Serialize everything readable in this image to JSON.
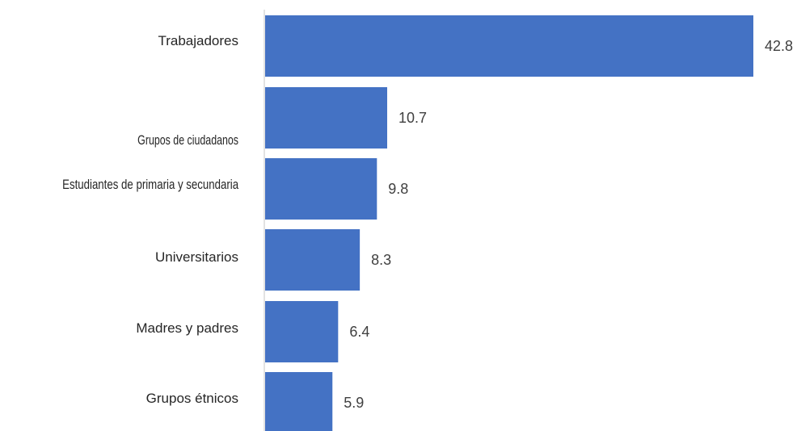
{
  "chart_data": {
    "type": "bar",
    "orientation": "horizontal",
    "categories": [
      "Trabajadores",
      "Grupos de ciudadanos",
      "Estudiantes de primaria y secundaria",
      "Universitarios",
      "Madres y padres",
      "Grupos étnicos"
    ],
    "values": [
      42.8,
      10.7,
      9.8,
      8.3,
      6.4,
      5.9
    ],
    "data_labels": [
      "42.8",
      "10.7",
      "9.8",
      "8.3",
      "6.4",
      "5.9"
    ],
    "xlim": [
      0,
      42.8
    ],
    "grid": false,
    "legend": "none",
    "colors": {
      "bar": "#4472C4",
      "axis": "#D9D9D9",
      "label": "#262626",
      "value": "#404040"
    }
  }
}
